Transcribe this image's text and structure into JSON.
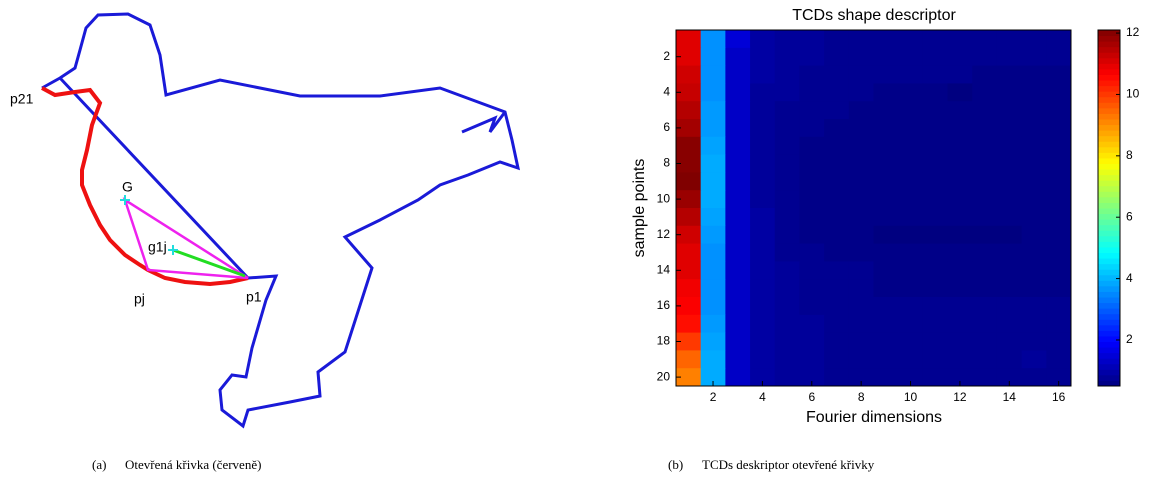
{
  "diagram": {
    "labels": [
      "p21",
      "G",
      "g1j",
      "pj",
      "p1"
    ]
  },
  "captions": [
    "(a)",
    "Otevřená křivka (červeně)",
    "(b)",
    "TCDs deskriptor otevřené křivky"
  ],
  "chart_data": {
    "type": "heatmap",
    "title": "TCDs shape descriptor",
    "x_label": "Fourier dimensions",
    "y_label": "sample points",
    "colormap": "jet",
    "xlim": [
      0.5,
      16.5
    ],
    "ylim": [
      0.5,
      20.5
    ],
    "y_reversed": true,
    "xticks": [
      2,
      4,
      6,
      8,
      10,
      12,
      14,
      16
    ],
    "yticks": [
      2,
      4,
      6,
      8,
      10,
      12,
      14,
      16,
      18,
      20
    ],
    "clim": [
      0.5,
      12.1
    ],
    "colorbar_ticks": [
      2,
      4,
      6,
      8,
      10,
      12
    ],
    "values": [
      [
        11.0,
        3.6,
        1.5,
        0.9,
        0.8,
        0.8,
        0.7,
        0.7,
        0.7,
        0.7,
        0.7,
        0.7,
        0.7,
        0.7,
        0.7,
        0.7
      ],
      [
        11.0,
        3.6,
        1.3,
        0.9,
        0.8,
        0.8,
        0.7,
        0.7,
        0.7,
        0.7,
        0.7,
        0.7,
        0.7,
        0.7,
        0.7,
        0.7
      ],
      [
        11.2,
        3.6,
        1.3,
        0.9,
        0.8,
        0.7,
        0.7,
        0.7,
        0.7,
        0.7,
        0.7,
        0.7,
        0.6,
        0.6,
        0.6,
        0.6
      ],
      [
        11.3,
        3.6,
        1.3,
        0.8,
        0.8,
        0.7,
        0.7,
        0.7,
        0.6,
        0.6,
        0.6,
        0.5,
        0.6,
        0.6,
        0.6,
        0.6
      ],
      [
        11.5,
        3.7,
        1.3,
        0.8,
        0.7,
        0.7,
        0.7,
        0.6,
        0.6,
        0.6,
        0.6,
        0.6,
        0.6,
        0.6,
        0.6,
        0.6
      ],
      [
        11.7,
        3.7,
        1.3,
        0.8,
        0.7,
        0.7,
        0.6,
        0.6,
        0.6,
        0.6,
        0.6,
        0.6,
        0.6,
        0.6,
        0.6,
        0.6
      ],
      [
        12.0,
        3.8,
        1.3,
        0.8,
        0.7,
        0.6,
        0.6,
        0.6,
        0.6,
        0.6,
        0.6,
        0.6,
        0.6,
        0.6,
        0.6,
        0.6
      ],
      [
        12.0,
        3.9,
        1.3,
        0.8,
        0.7,
        0.6,
        0.6,
        0.6,
        0.6,
        0.6,
        0.6,
        0.6,
        0.6,
        0.6,
        0.6,
        0.6
      ],
      [
        12.1,
        3.9,
        1.3,
        0.8,
        0.7,
        0.6,
        0.6,
        0.6,
        0.6,
        0.6,
        0.6,
        0.6,
        0.6,
        0.6,
        0.6,
        0.6
      ],
      [
        11.8,
        3.9,
        1.3,
        0.8,
        0.7,
        0.6,
        0.6,
        0.6,
        0.6,
        0.6,
        0.6,
        0.6,
        0.6,
        0.6,
        0.6,
        0.6
      ],
      [
        11.5,
        3.8,
        1.3,
        0.9,
        0.7,
        0.6,
        0.6,
        0.6,
        0.6,
        0.6,
        0.6,
        0.6,
        0.6,
        0.6,
        0.6,
        0.6
      ],
      [
        11.2,
        3.7,
        1.3,
        0.9,
        0.7,
        0.6,
        0.6,
        0.6,
        0.5,
        0.5,
        0.5,
        0.5,
        0.5,
        0.5,
        0.6,
        0.6
      ],
      [
        11.0,
        3.6,
        1.3,
        0.9,
        0.7,
        0.7,
        0.6,
        0.6,
        0.6,
        0.6,
        0.6,
        0.6,
        0.6,
        0.6,
        0.6,
        0.6
      ],
      [
        11.0,
        3.6,
        1.3,
        0.9,
        0.8,
        0.7,
        0.7,
        0.7,
        0.6,
        0.6,
        0.6,
        0.6,
        0.6,
        0.6,
        0.6,
        0.6
      ],
      [
        10.8,
        3.6,
        1.3,
        0.9,
        0.8,
        0.7,
        0.7,
        0.7,
        0.6,
        0.6,
        0.6,
        0.6,
        0.6,
        0.6,
        0.6,
        0.6
      ],
      [
        10.7,
        3.6,
        1.3,
        0.9,
        0.8,
        0.7,
        0.7,
        0.7,
        0.7,
        0.7,
        0.7,
        0.7,
        0.7,
        0.7,
        0.7,
        0.7
      ],
      [
        10.5,
        3.7,
        1.3,
        0.9,
        0.8,
        0.8,
        0.7,
        0.7,
        0.7,
        0.7,
        0.7,
        0.7,
        0.7,
        0.7,
        0.7,
        0.7
      ],
      [
        10.0,
        3.8,
        1.3,
        0.9,
        0.8,
        0.8,
        0.7,
        0.7,
        0.7,
        0.7,
        0.7,
        0.7,
        0.7,
        0.7,
        0.7,
        0.7
      ],
      [
        9.5,
        3.9,
        1.3,
        0.9,
        0.8,
        0.8,
        0.7,
        0.7,
        0.7,
        0.7,
        0.7,
        0.7,
        0.7,
        0.7,
        0.8,
        0.7
      ],
      [
        9.2,
        3.9,
        1.3,
        0.9,
        0.8,
        0.8,
        0.7,
        0.7,
        0.7,
        0.7,
        0.7,
        0.7,
        0.7,
        0.7,
        0.7,
        0.7
      ]
    ]
  }
}
